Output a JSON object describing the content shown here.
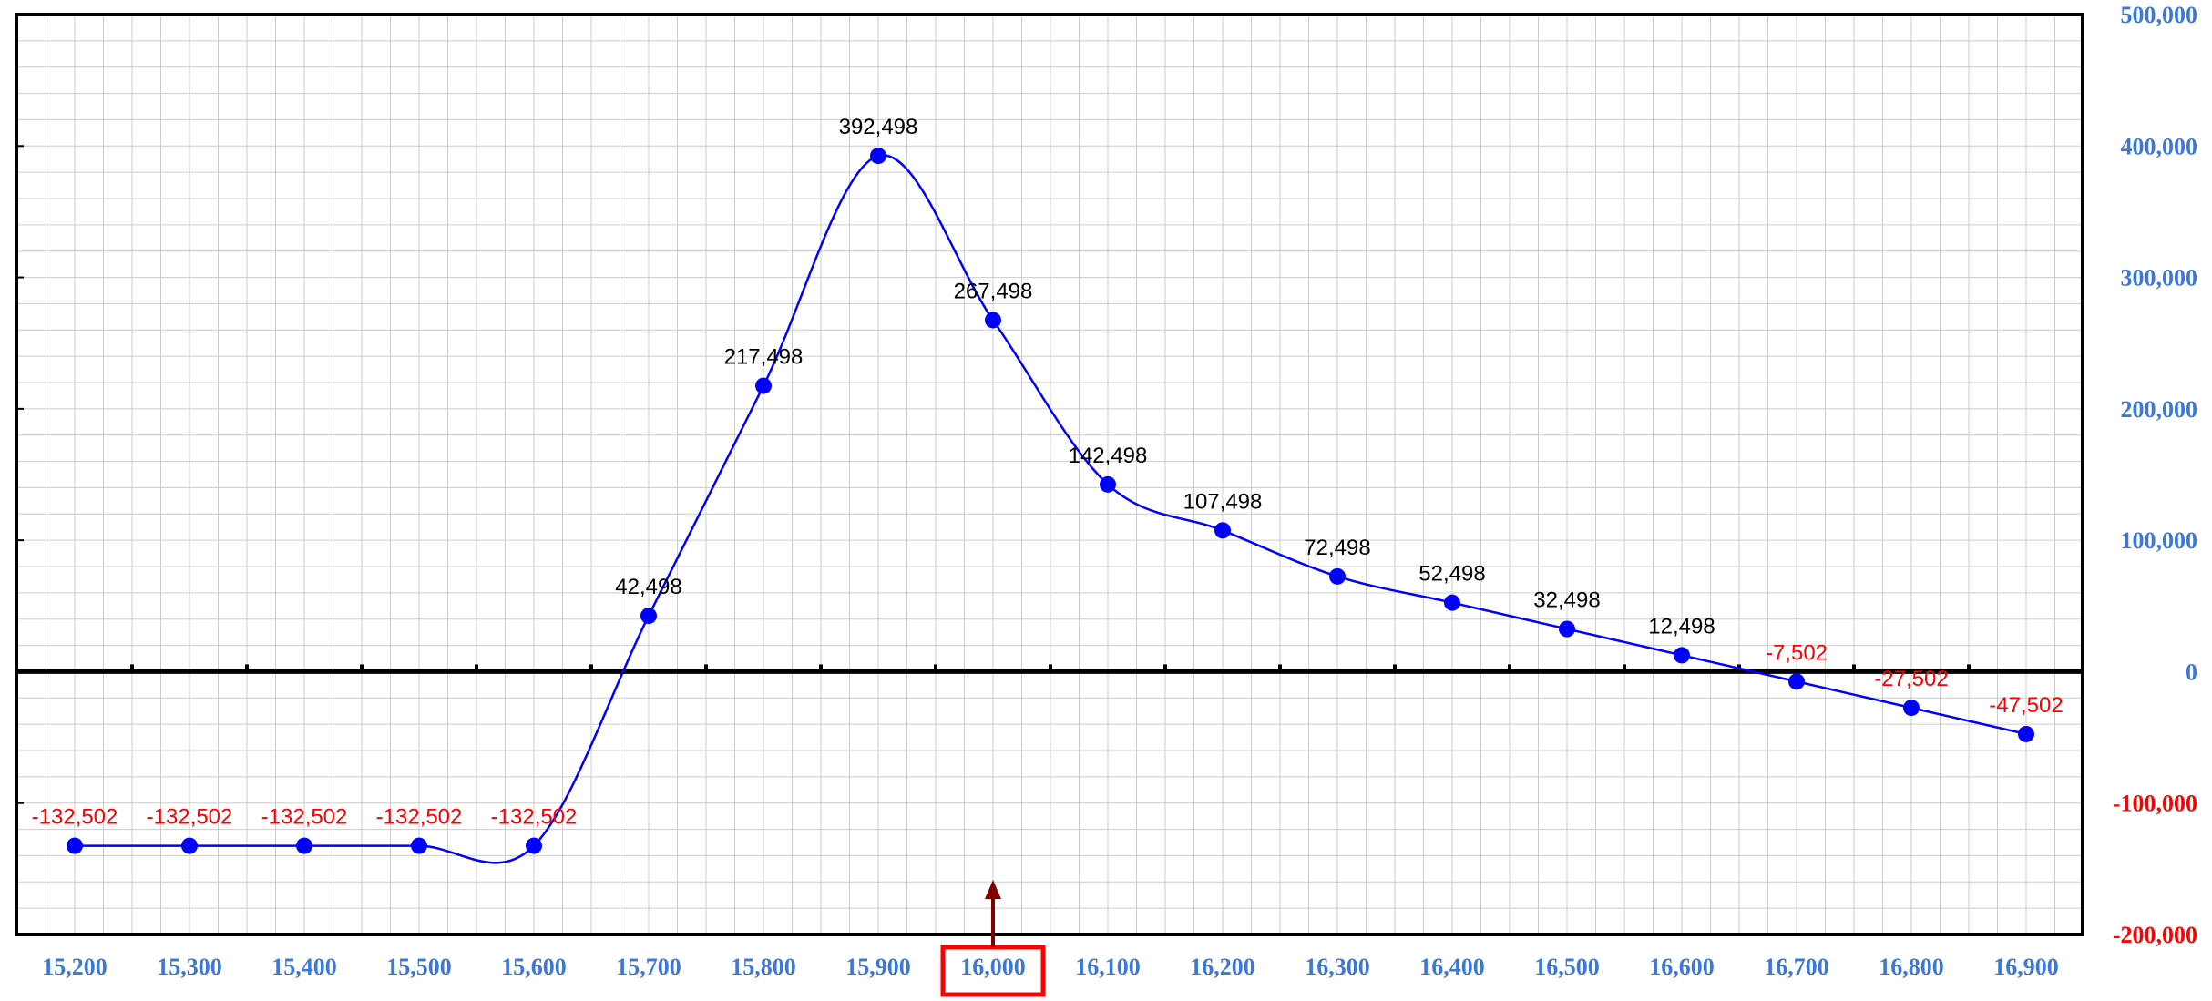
{
  "chart_data": {
    "type": "line",
    "title": "",
    "xlabel": "",
    "ylabel": "",
    "x": [
      15200,
      15300,
      15400,
      15500,
      15600,
      15700,
      15800,
      15900,
      16000,
      16100,
      16200,
      16300,
      16400,
      16500,
      16600,
      16700,
      16800,
      16900
    ],
    "x_tick_labels": [
      "15,200",
      "15,300",
      "15,400",
      "15,500",
      "15,600",
      "15,700",
      "15,800",
      "15,900",
      "16,000",
      "16,100",
      "16,200",
      "16,300",
      "16,400",
      "16,500",
      "16,600",
      "16,700",
      "16,800",
      "16,900"
    ],
    "series": [
      {
        "name": "",
        "values": [
          -132502,
          -132502,
          -132502,
          -132502,
          -132502,
          42498,
          217498,
          392498,
          267498,
          142498,
          107498,
          72498,
          52498,
          32498,
          12498,
          -7502,
          -27502,
          -47502
        ],
        "labels": [
          "-132,502",
          "-132,502",
          "-132,502",
          "-132,502",
          "-132,502",
          "42,498",
          "217,498",
          "392,498",
          "267,498",
          "142,498",
          "107,498",
          "72,498",
          "52,498",
          "32,498",
          "12,498",
          "-7,502",
          "-27,502",
          "-47,502"
        ]
      }
    ],
    "ylim": [
      -200000,
      500000
    ],
    "y_ticks": [
      500000,
      400000,
      300000,
      200000,
      100000,
      0,
      -100000,
      -200000
    ],
    "y_tick_labels": [
      "500,000",
      "400,000",
      "300,000",
      "200,000",
      "100,000",
      "0",
      "-100,000",
      "-200,000"
    ],
    "y_axis_position": "right",
    "grid": true,
    "highlighted_x": 16000,
    "colors": {
      "line": "#0000ff",
      "marker": "#0000ff",
      "positive_label": "#000000",
      "negative_label": "#ff0000",
      "positive_tick": "#3c78d8",
      "negative_tick": "#ff0000",
      "x_tick": "#3c78d8",
      "highlight_box": "#ff0000",
      "arrow": "#800000",
      "grid": "#cccccc"
    }
  }
}
